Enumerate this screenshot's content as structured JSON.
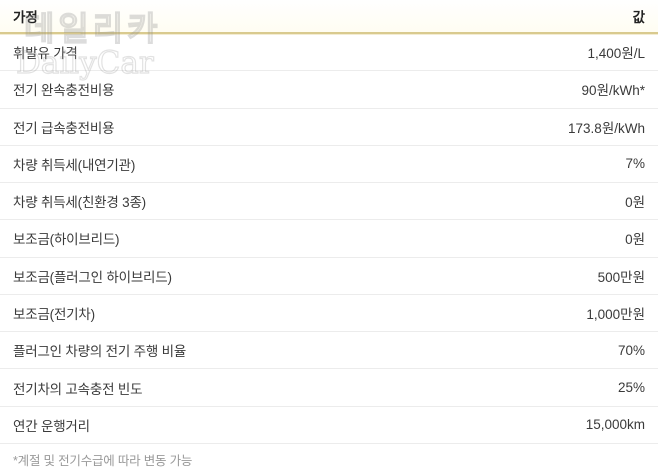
{
  "chart_data": {
    "type": "table",
    "columns": [
      "가정",
      "값"
    ],
    "rows": [
      [
        "휘발유 가격",
        "1,400원/L"
      ],
      [
        "전기 완속충전비용",
        "90원/kWh*"
      ],
      [
        "전기 급속충전비용",
        "173.8원/kWh"
      ],
      [
        "차량 취득세(내연기관)",
        "7%"
      ],
      [
        "차량 취득세(친환경 3종)",
        "0원"
      ],
      [
        "보조금(하이브리드)",
        "0원"
      ],
      [
        "보조금(플러그인 하이브리드)",
        "500만원"
      ],
      [
        "보조금(전기차)",
        "1,000만원"
      ],
      [
        "플러그인 차량의 전기 주행 비율",
        "70%"
      ],
      [
        "전기차의 고속충전 빈도",
        "25%"
      ],
      [
        "연간 운행거리",
        "15,000km"
      ]
    ],
    "footnote": "*계절 및 전기수급에 따라 변동 가능",
    "layout_hints": {
      "header_underline_color": "#d9ca8e",
      "value_alignment": "right",
      "grid": "horizontal-separators-only"
    }
  },
  "table": {
    "header": {
      "label": "가정",
      "value": "값"
    },
    "rows": [
      {
        "label": "휘발유 가격",
        "value": "1,400원/L"
      },
      {
        "label": "전기 완속충전비용",
        "value": "90원/kWh*"
      },
      {
        "label": "전기 급속충전비용",
        "value": "173.8원/kWh"
      },
      {
        "label": "차량 취득세(내연기관)",
        "value": "7%"
      },
      {
        "label": "차량 취득세(친환경 3종)",
        "value": "0원"
      },
      {
        "label": "보조금(하이브리드)",
        "value": "0원"
      },
      {
        "label": "보조금(플러그인 하이브리드)",
        "value": "500만원"
      },
      {
        "label": "보조금(전기차)",
        "value": "1,000만원"
      },
      {
        "label": "플러그인 차량의 전기 주행 비율",
        "value": "70%"
      },
      {
        "label": "전기차의 고속충전 빈도",
        "value": "25%"
      },
      {
        "label": "연간 운행거리",
        "value": "15,000km"
      }
    ],
    "footnote": "*계절 및 전기수급에 따라 변동 가능"
  },
  "watermark": {
    "korean": "데일리카",
    "english": "DailyCar"
  },
  "colors": {
    "accent_gold": "#d9ca8e",
    "separator": "#ececec",
    "text": "#3a3a3a",
    "header_text": "#222222",
    "footnote_text": "#9a9a9a"
  }
}
